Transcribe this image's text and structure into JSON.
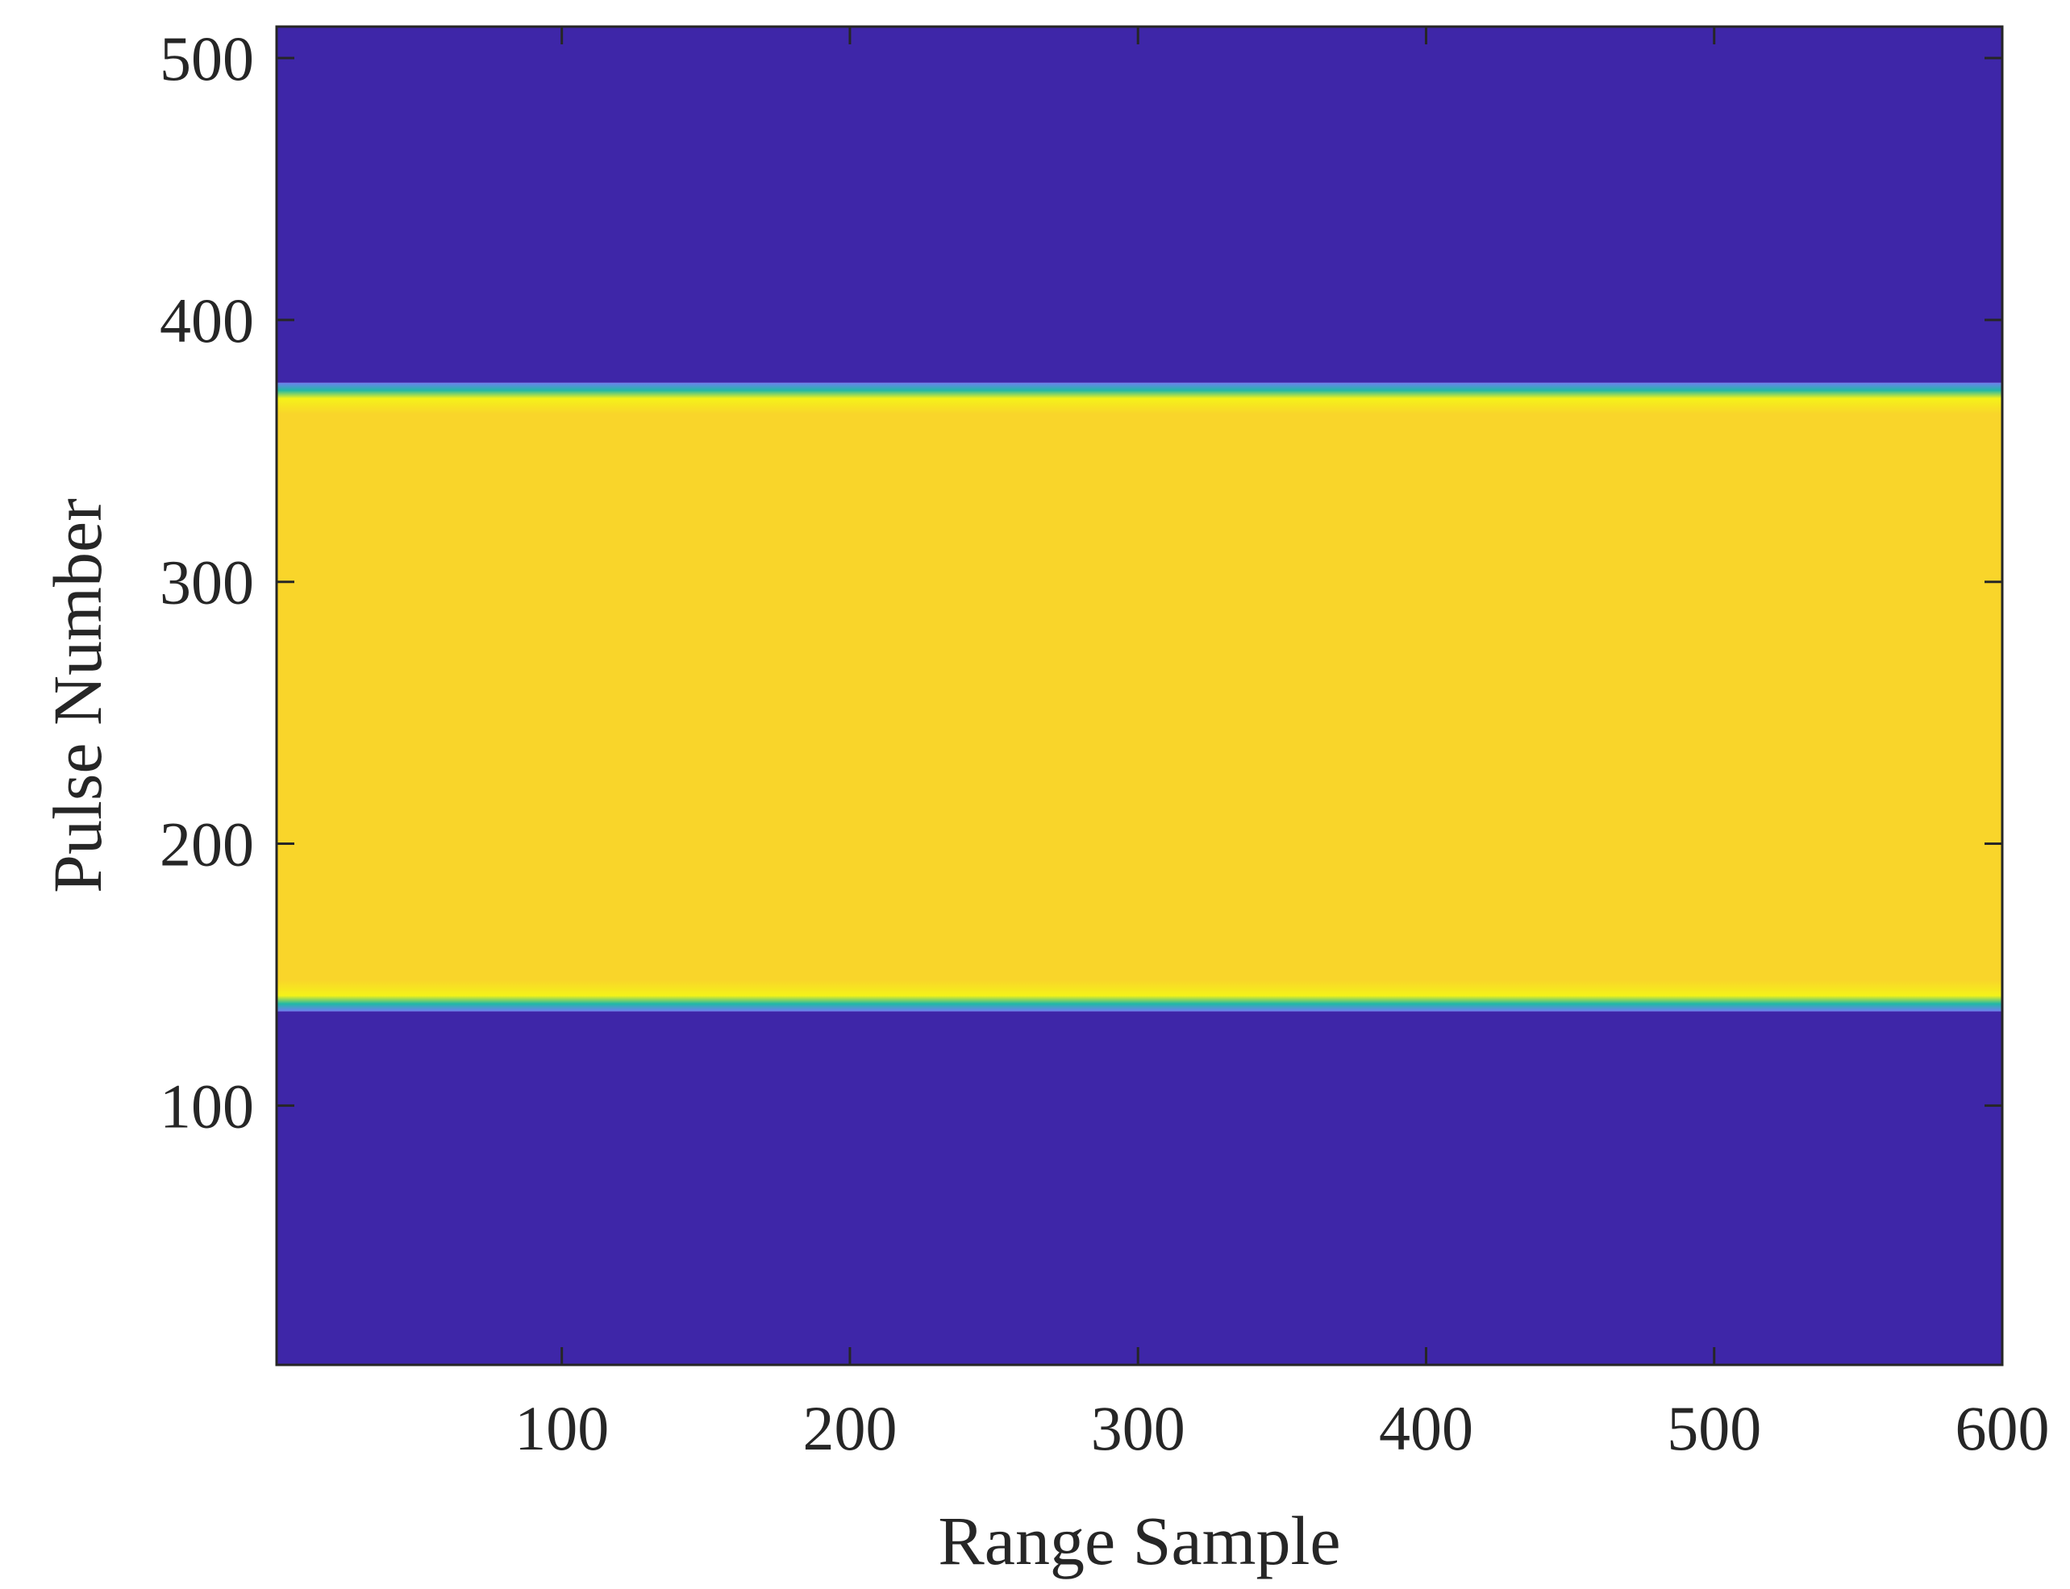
{
  "chart_data": {
    "type": "heatmap",
    "title": "",
    "xlabel": "Range Sample",
    "ylabel": "Pulse Number",
    "xlim": [
      1,
      600
    ],
    "ylim": [
      1,
      512
    ],
    "xticks": [
      100,
      200,
      300,
      400,
      500,
      600
    ],
    "yticks": [
      100,
      200,
      300,
      400,
      500
    ],
    "grid": false,
    "colormap": "parula",
    "colors": {
      "low": "#3e26a8",
      "high": "#f9d52a",
      "edge": "#f5f219",
      "transition": "#21b8a6",
      "axis": "#262626"
    },
    "bands": [
      {
        "pulse_start": 1,
        "pulse_end": 136,
        "level": "low"
      },
      {
        "pulse_start": 136,
        "pulse_end": 376,
        "level": "high"
      },
      {
        "pulse_start": 376,
        "pulse_end": 512,
        "level": "low"
      }
    ]
  }
}
